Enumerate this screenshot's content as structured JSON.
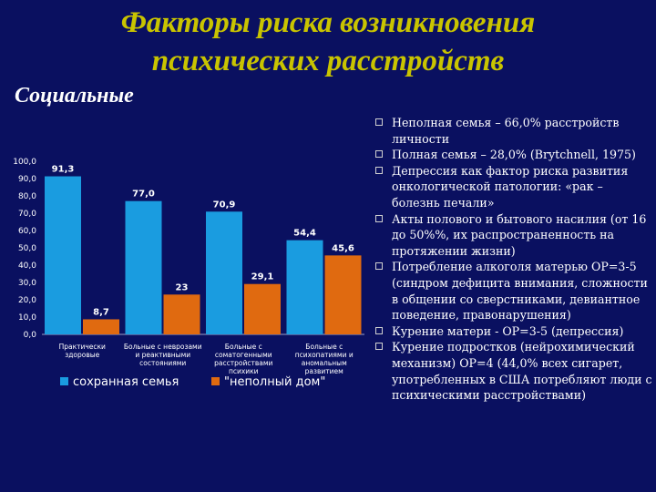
{
  "slide": {
    "title_line1": "Факторы риска возникновения",
    "title_line2": "психических расстройств",
    "subtitle": "Социальные"
  },
  "bullets": [
    {
      "text": "Неполная семья – 66,0% расстройств личности"
    },
    {
      "text": "Полная семья – 28,0% (Brytchnell, 1975)"
    },
    {
      "text": "Депрессия как фактор риска развития онкологической патологии: «рак – болезнь печали»"
    },
    {
      "text": "Акты полового и бытового насилия (от 16 до 50%%, их распространенность на протяжении жизни)"
    },
    {
      "text": "Потребление алкоголя матерью ОР=3-5 (синдром дефицита внимания, сложности в общении со сверстниками, девиантное поведение, правонарушения)"
    },
    {
      "text": "Курение матери - ОР=3-5 (депрессия)"
    },
    {
      "text": "Курение подростков (нейрохимический механизм) ОР=4 (44,0% всех сигарет, употребленных в США потребляют люди с психическими расстройствами)"
    }
  ],
  "colors": {
    "background": "#0a1060",
    "title": "#c9c400",
    "series_blue": "#1a9ce0",
    "series_orange": "#e06a10"
  },
  "chart_data": {
    "type": "bar",
    "categories": [
      [
        "Практически",
        "здоровые"
      ],
      [
        "Больные с неврозами",
        "и реактивными",
        "состояниями"
      ],
      [
        "Больные с",
        "соматогенными",
        "расстройствами",
        "психики"
      ],
      [
        "Больные с",
        "психопатиями и",
        "аномальным",
        "развитием"
      ]
    ],
    "series": [
      {
        "name": "сохранная семья",
        "color": "#1a9ce0",
        "values": [
          91.3,
          77.0,
          70.9,
          54.4
        ],
        "labels": [
          "91,3",
          "77,0",
          "70,9",
          "54,4"
        ]
      },
      {
        "name": "\"неполный дом\"",
        "color": "#e06a10",
        "values": [
          8.7,
          23,
          29.1,
          45.6
        ],
        "labels": [
          "8,7",
          "23",
          "29,1",
          "45,6"
        ]
      }
    ],
    "ylim": [
      0,
      100
    ],
    "yticks": [
      0,
      10,
      20,
      30,
      40,
      50,
      60,
      70,
      80,
      90,
      100
    ],
    "ytick_labels": [
      "0,0",
      "10,0",
      "20,0",
      "30,0",
      "40,0",
      "50,0",
      "60,0",
      "70,0",
      "80,0",
      "90,0",
      "100,0"
    ],
    "grid": false,
    "legend": "bottom",
    "title": "",
    "xlabel": "",
    "ylabel": ""
  }
}
